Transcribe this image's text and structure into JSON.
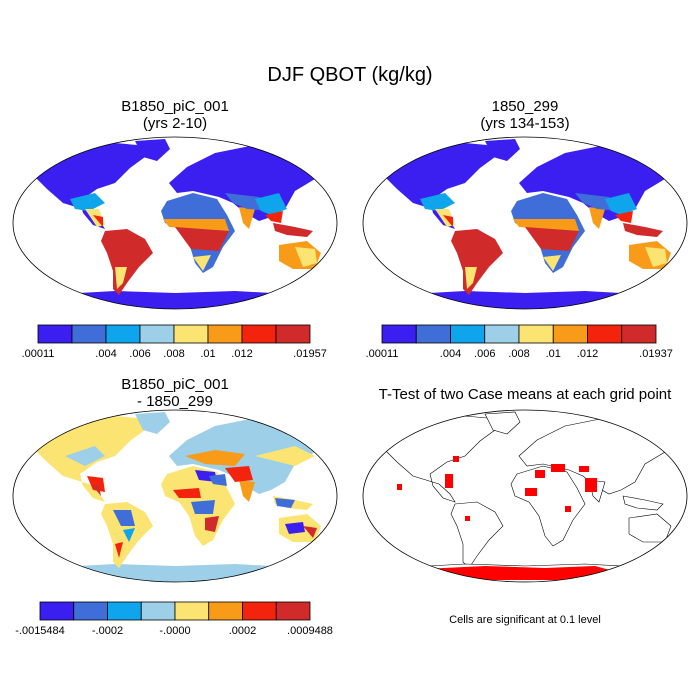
{
  "main_title": "DJF QBOT (kg/kg)",
  "panels": [
    {
      "title_line1": "B1850_piC_001",
      "title_line2": "(yrs 2-10)"
    },
    {
      "title_line1": "1850_299",
      "title_line2": "(yrs 134-153)"
    },
    {
      "title_line1": "B1850_piC_001",
      "title_line2": "- 1850_299"
    },
    {
      "title_line1": "T-Test of two Case means at each grid point",
      "title_line2": ""
    }
  ],
  "colorbars": [
    {
      "colors": [
        "#3b1ff0",
        "#3f6ed8",
        "#0ea5ec",
        "#9dcfe8",
        "#fce472",
        "#f89b19",
        "#f3230e",
        "#d02a2a"
      ],
      "labels": [
        ".00011",
        ".004",
        ".006",
        ".008",
        ".01",
        ".012",
        ".01957"
      ]
    },
    {
      "colors": [
        "#3b1ff0",
        "#3f6ed8",
        "#0ea5ec",
        "#9dcfe8",
        "#fce472",
        "#f89b19",
        "#f3230e",
        "#d02a2a"
      ],
      "labels": [
        ".00011",
        ".004",
        ".006",
        ".008",
        ".01",
        ".012",
        ".01937"
      ]
    },
    {
      "colors": [
        "#3b1ff0",
        "#3f6ed8",
        "#0ea5ec",
        "#9dcfe8",
        "#fce472",
        "#f89b19",
        "#f3230e",
        "#d02a2a"
      ],
      "labels": [
        "-.0015484",
        "-.0002",
        "-.0000",
        ".0002",
        ".0009488"
      ]
    }
  ],
  "sig_note": "Cells are significant at 0.1 level",
  "chart_data": [
    {
      "type": "heatmap",
      "title": "B1850_piC_001 (yrs 2-10)",
      "variable": "DJF QBOT (kg/kg)",
      "range": [
        0.00011,
        0.01957
      ],
      "levels": [
        0.00011,
        0.004,
        0.006,
        0.008,
        0.01,
        0.012,
        0.01957
      ]
    },
    {
      "type": "heatmap",
      "title": "1850_299 (yrs 134-153)",
      "variable": "DJF QBOT (kg/kg)",
      "range": [
        0.00011,
        0.01937
      ],
      "levels": [
        0.00011,
        0.004,
        0.006,
        0.008,
        0.01,
        0.012,
        0.01937
      ]
    },
    {
      "type": "heatmap",
      "title": "B1850_piC_001 - 1850_299",
      "variable": "DJF QBOT difference (kg/kg)",
      "range": [
        -0.0015484,
        0.0009488
      ],
      "levels": [
        -0.0015484,
        -0.0002,
        -0.0,
        0.0002,
        0.0009488
      ]
    },
    {
      "type": "heatmap",
      "title": "T-Test of two Case means at each grid point",
      "significance_level": 0.1
    }
  ]
}
